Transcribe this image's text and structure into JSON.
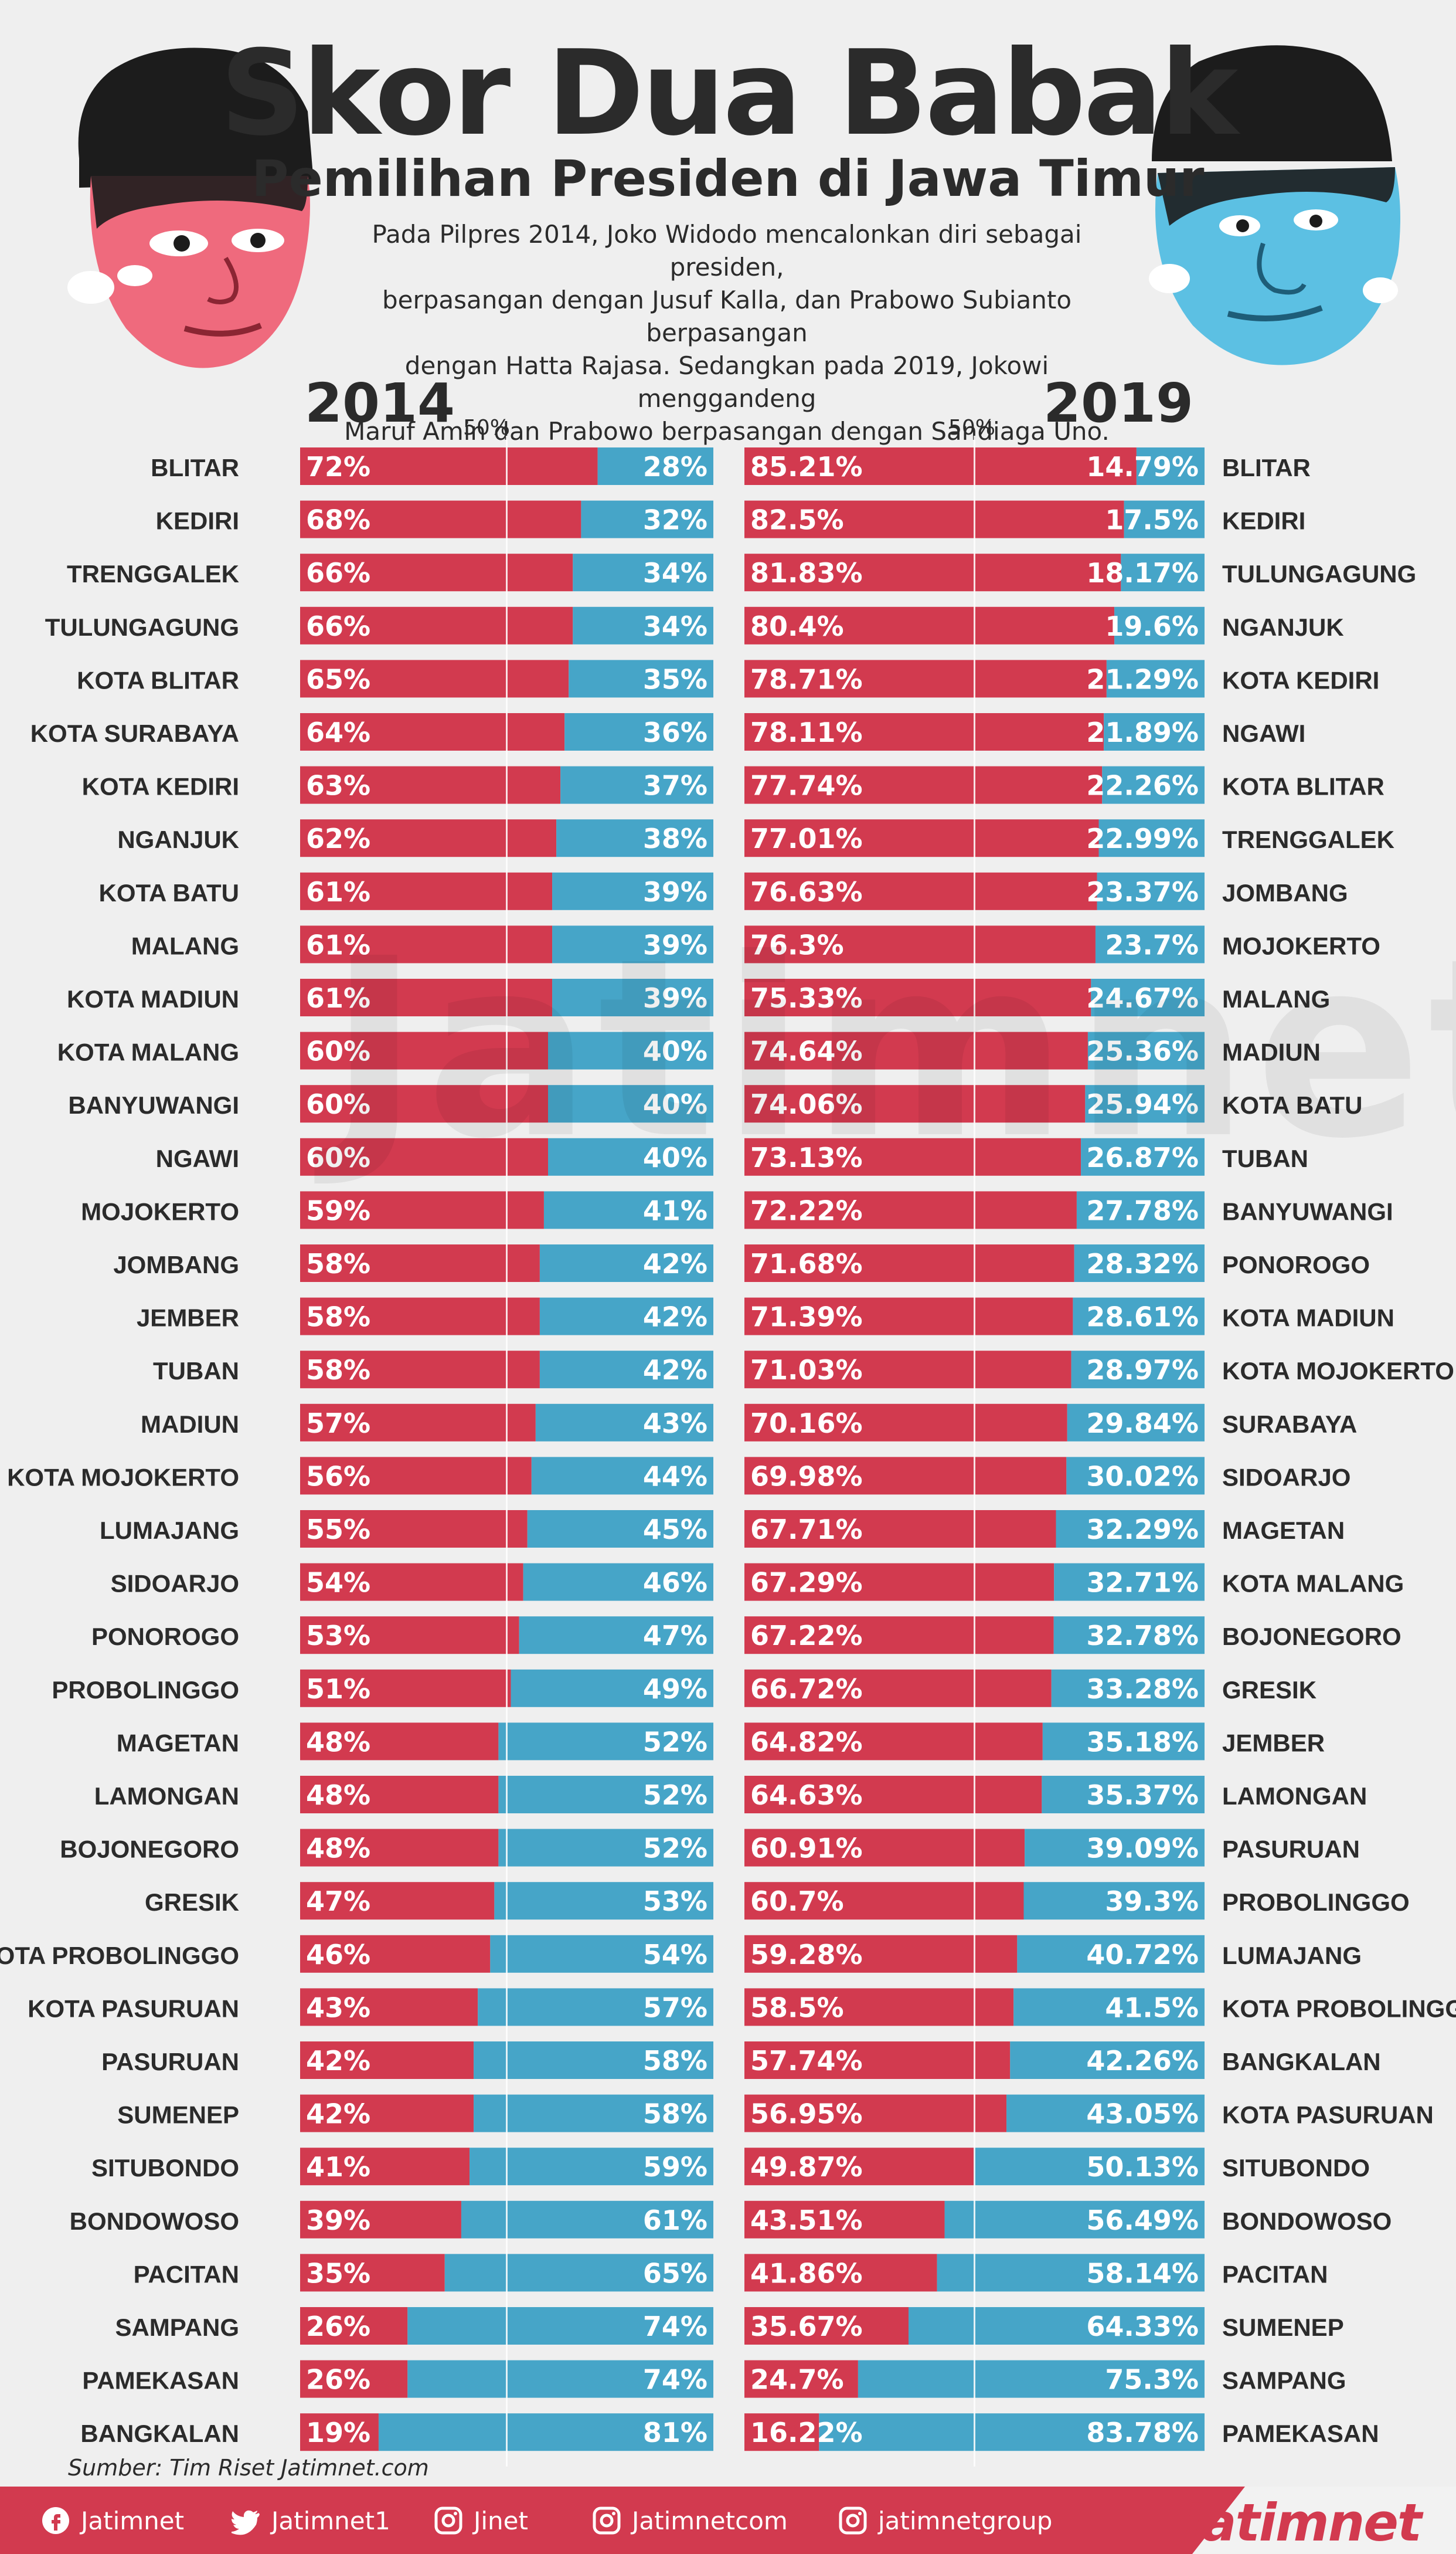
{
  "header": {
    "title": "Skor Dua Babak",
    "subtitle": "Pemilihan Presiden di Jawa Timur",
    "description_lines": [
      "Pada Pilpres 2014, Joko Widodo mencalonkan diri sebagai presiden,",
      "berpasangan dengan Jusuf Kalla, dan Prabowo Subianto berpasangan",
      "dengan Hatta Rajasa. Sedangkan pada 2019, Jokowi menggandeng",
      "Maruf Amin dan Prabowo berpasangan dengan Sandiaga Uno."
    ]
  },
  "colors": {
    "red": "#d23a4f",
    "blue": "#46a5c8",
    "text": "#2b2b2b"
  },
  "chart_data": [
    {
      "type": "bar",
      "title": "2014",
      "midline_label": "50%",
      "categories": [
        "BLITAR",
        "KEDIRI",
        "TRENGGALEK",
        "TULUNGAGUNG",
        "KOTA BLITAR",
        "KOTA SURABAYA",
        "KOTA KEDIRI",
        "NGANJUK",
        "KOTA BATU",
        "MALANG",
        "KOTA MADIUN",
        "KOTA MALANG",
        "BANYUWANGI",
        "NGAWI",
        "MOJOKERTO",
        "JOMBANG",
        "JEMBER",
        "TUBAN",
        "MADIUN",
        "KOTA MOJOKERTO",
        "LUMAJANG",
        "SIDOARJO",
        "PONOROGO",
        "PROBOLINGGO",
        "MAGETAN",
        "LAMONGAN",
        "BOJONEGORO",
        "GRESIK",
        "KOTA PROBOLINGGO",
        "KOTA PASURUAN",
        "PASURUAN",
        "SUMENEP",
        "SITUBONDO",
        "BONDOWOSO",
        "PACITAN",
        "SAMPANG",
        "PAMEKASAN",
        "BANGKALAN"
      ],
      "series": [
        {
          "color": "#d23a4f",
          "values": [
            72,
            68,
            66,
            66,
            65,
            64,
            63,
            62,
            61,
            61,
            61,
            60,
            60,
            60,
            59,
            58,
            58,
            58,
            57,
            56,
            55,
            54,
            53,
            51,
            48,
            48,
            48,
            47,
            46,
            43,
            42,
            42,
            41,
            39,
            35,
            26,
            26,
            19
          ],
          "labels": [
            "72%",
            "68%",
            "66%",
            "66%",
            "65%",
            "64%",
            "63%",
            "62%",
            "61%",
            "61%",
            "61%",
            "60%",
            "60%",
            "60%",
            "59%",
            "58%",
            "58%",
            "58%",
            "57%",
            "56%",
            "55%",
            "54%",
            "53%",
            "51%",
            "48%",
            "48%",
            "48%",
            "47%",
            "46%",
            "43%",
            "42%",
            "42%",
            "41%",
            "39%",
            "35%",
            "26%",
            "26%",
            "19%"
          ]
        },
        {
          "color": "#46a5c8",
          "values": [
            28,
            32,
            34,
            34,
            35,
            36,
            37,
            38,
            39,
            39,
            39,
            40,
            40,
            40,
            41,
            42,
            42,
            42,
            43,
            44,
            45,
            46,
            47,
            49,
            52,
            52,
            52,
            53,
            54,
            57,
            58,
            58,
            59,
            61,
            65,
            74,
            74,
            81
          ],
          "labels": [
            "28%",
            "32%",
            "34%",
            "34%",
            "35%",
            "36%",
            "37%",
            "38%",
            "39%",
            "39%",
            "39%",
            "40%",
            "40%",
            "40%",
            "41%",
            "42%",
            "42%",
            "42%",
            "43%",
            "44%",
            "45%",
            "46%",
            "47%",
            "49%",
            "52%",
            "52%",
            "52%",
            "53%",
            "54%",
            "57%",
            "58%",
            "58%",
            "59%",
            "61%",
            "65%",
            "74%",
            "74%",
            "81%"
          ]
        }
      ]
    },
    {
      "type": "bar",
      "title": "2019",
      "midline_label": "50%",
      "categories": [
        "BLITAR",
        "KEDIRI",
        "TULUNGAGUNG",
        "NGANJUK",
        "KOTA KEDIRI",
        "NGAWI",
        "KOTA BLITAR",
        "TRENGGALEK",
        "JOMBANG",
        "MOJOKERTO",
        "MALANG",
        "MADIUN",
        "KOTA BATU",
        "TUBAN",
        "BANYUWANGI",
        "PONOROGO",
        "KOTA MADIUN",
        "KOTA MOJOKERTO",
        "SURABAYA",
        "SIDOARJO",
        "MAGETAN",
        "KOTA MALANG",
        "BOJONEGORO",
        "GRESIK",
        "JEMBER",
        "LAMONGAN",
        "PASURUAN",
        "PROBOLINGGO",
        "LUMAJANG",
        "KOTA PROBOLINGGO",
        "BANGKALAN",
        "KOTA PASURUAN",
        "SITUBONDO",
        "BONDOWOSO",
        "PACITAN",
        "SUMENEP",
        "SAMPANG",
        "PAMEKASAN"
      ],
      "series": [
        {
          "color": "#d23a4f",
          "values": [
            85.21,
            82.5,
            81.83,
            80.4,
            78.71,
            78.11,
            77.74,
            77.01,
            76.63,
            76.3,
            75.33,
            74.64,
            74.06,
            73.13,
            72.22,
            71.68,
            71.39,
            71.03,
            70.16,
            69.98,
            67.71,
            67.29,
            67.22,
            66.72,
            64.82,
            64.63,
            60.91,
            60.7,
            59.28,
            58.5,
            57.74,
            56.95,
            49.87,
            43.51,
            41.86,
            35.67,
            24.7,
            16.22
          ],
          "labels": [
            "85.21%",
            "82.5%",
            "81.83%",
            "80.4%",
            "78.71%",
            "78.11%",
            "77.74%",
            "77.01%",
            "76.63%",
            "76.3%",
            "75.33%",
            "74.64%",
            "74.06%",
            "73.13%",
            "72.22%",
            "71.68%",
            "71.39%",
            "71.03%",
            "70.16%",
            "69.98%",
            "67.71%",
            "67.29%",
            "67.22%",
            "66.72%",
            "64.82%",
            "64.63%",
            "60.91%",
            "60.7%",
            "59.28%",
            "58.5%",
            "57.74%",
            "56.95%",
            "49.87%",
            "43.51%",
            "41.86%",
            "35.67%",
            "24.7%",
            "16.22%"
          ]
        },
        {
          "color": "#46a5c8",
          "values": [
            14.79,
            17.5,
            18.17,
            19.6,
            21.29,
            21.89,
            22.26,
            22.99,
            23.37,
            23.7,
            24.67,
            25.36,
            25.94,
            26.87,
            27.78,
            28.32,
            28.61,
            28.97,
            29.84,
            30.02,
            32.29,
            32.71,
            32.78,
            33.28,
            35.18,
            35.37,
            39.09,
            39.3,
            40.72,
            41.5,
            42.26,
            43.05,
            50.13,
            56.49,
            58.14,
            64.33,
            75.3,
            83.78
          ],
          "labels": [
            "14.79%",
            "17.5%",
            "18.17%",
            "19.6%",
            "21.29%",
            "21.89%",
            "22.26%",
            "22.99%",
            "23.37%",
            "23.7%",
            "24.67%",
            "25.36%",
            "25.94%",
            "26.87%",
            "27.78%",
            "28.32%",
            "28.61%",
            "28.97%",
            "29.84%",
            "30.02%",
            "32.29%",
            "32.71%",
            "32.78%",
            "33.28%",
            "35.18%",
            "35.37%",
            "39.09%",
            "39.3%",
            "40.72%",
            "41.5%",
            "42.26%",
            "43.05%",
            "50.13%",
            "56.49%",
            "58.14%",
            "64.33%",
            "75.3%",
            "83.78%"
          ]
        }
      ]
    }
  ],
  "watermark": "Jatimnet",
  "source": "Sumber: Tim Riset Jatimnet.com",
  "footer": {
    "social": [
      {
        "icon": "facebook-icon",
        "label": "Jatimnet"
      },
      {
        "icon": "twitter-icon",
        "label": "Jatimnet1"
      },
      {
        "icon": "instagram-icon",
        "label": "Jinet"
      },
      {
        "icon": "instagram-icon",
        "label": "Jatimnetcom"
      },
      {
        "icon": "instagram-icon",
        "label": "jatimnetgroup"
      }
    ],
    "logo": "Jatimnet"
  }
}
